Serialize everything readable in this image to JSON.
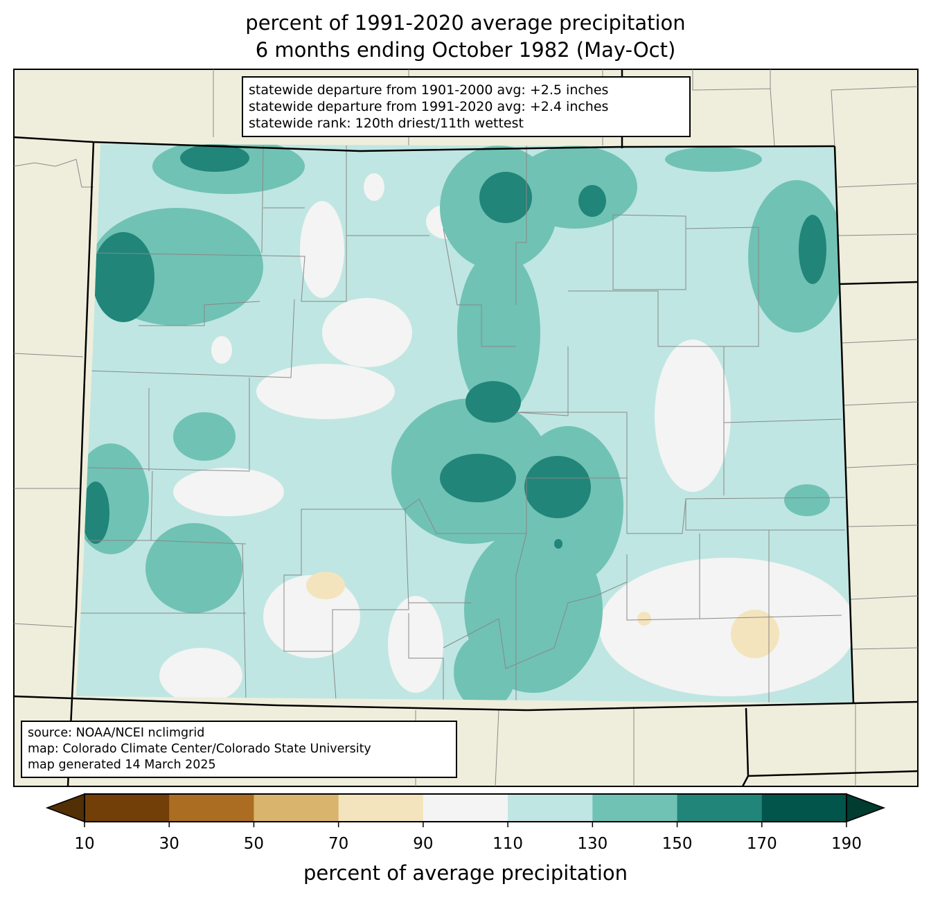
{
  "title": {
    "line1": "percent of 1991-2020 average precipitation",
    "line2": "6 months ending October 1982 (May-Oct)"
  },
  "stats_box": {
    "line1": "statewide departure from 1901-2000 avg: +2.5 inches",
    "line2": "statewide departure from 1991-2020 avg: +2.4 inches",
    "line3": "statewide rank: 120th driest/11th wettest"
  },
  "source_box": {
    "line1": "source: NOAA/NCEI nclimgrid",
    "line2": "map: Colorado Climate Center/Colorado State University",
    "line3": "map generated 14 March 2025"
  },
  "colorbar": {
    "label": "percent of average precipitation",
    "ticks": [
      "10",
      "30",
      "50",
      "70",
      "90",
      "110",
      "130",
      "150",
      "170",
      "190"
    ],
    "colors": [
      "#723f08",
      "#ab6d22",
      "#d9b46d",
      "#f3e4bd",
      "#f3f4f3",
      "#bfe6e2",
      "#70c2b4",
      "#218579",
      "#02554b"
    ],
    "under_color": "#532f06",
    "over_color": "#003c30"
  },
  "colors": {
    "land_outside": "#efeedc",
    "base_fill": "#bfe6e2"
  }
}
